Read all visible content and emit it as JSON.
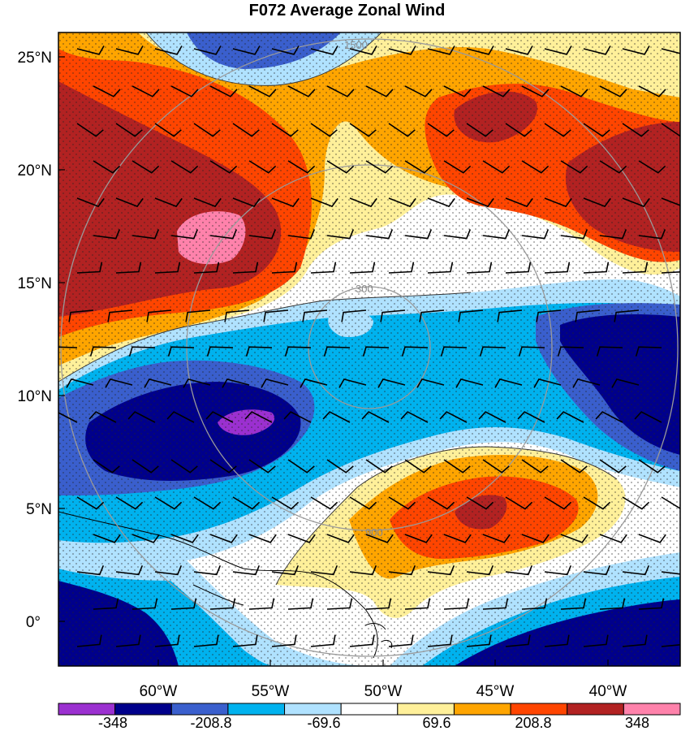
{
  "title": "F072 Average Zonal Wind",
  "map": {
    "lat_labels": [
      "25°N",
      "20°N",
      "15°N",
      "10°N",
      "5°N",
      "0°"
    ],
    "lon_labels": [
      "60°W",
      "55°W",
      "50°W",
      "45°W",
      "40°W"
    ],
    "range_rings": [
      "300",
      "900",
      "1500"
    ],
    "stippling": true,
    "wind_barbs": true,
    "coastlines": true
  },
  "colorbar": {
    "labels": [
      "-348",
      "-208.8",
      "-69.6",
      "69.6",
      "208.8",
      "348"
    ],
    "colors": [
      "#9b30d0",
      "#00008b",
      "#3a5fcd",
      "#00b2ee",
      "#b0e2ff",
      "#ffffff",
      "#fff09a",
      "#ffa500",
      "#ff4500",
      "#b22222",
      "#ff82ab"
    ]
  }
}
